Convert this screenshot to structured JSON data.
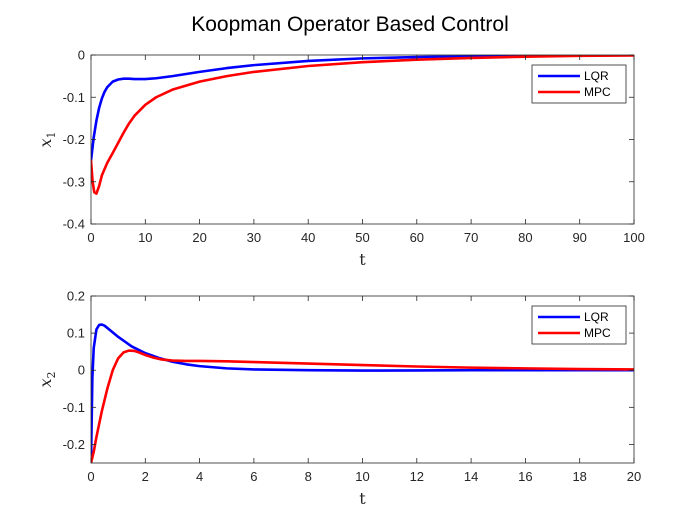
{
  "title": "Koopman Operator Based Control",
  "colors": {
    "LQR": "#0000ff",
    "MPC": "#ff0000"
  },
  "chart_data": [
    {
      "type": "line",
      "xlabel": "t",
      "ylabel": "x",
      "ylabel_sub": "1",
      "xlim": [
        0,
        100
      ],
      "ylim": [
        -0.4,
        0
      ],
      "xticks": [
        0,
        10,
        20,
        30,
        40,
        50,
        60,
        70,
        80,
        90,
        100
      ],
      "yticks": [
        -0.4,
        -0.3,
        -0.2,
        -0.1,
        0
      ],
      "ytick_labels": [
        "-0.4",
        "-0.3",
        "-0.2",
        "-0.1",
        "0"
      ],
      "grid": false,
      "legend": "top-right",
      "series": [
        {
          "name": "LQR",
          "x": [
            0,
            0.5,
            1,
            1.5,
            2,
            2.5,
            3,
            4,
            5,
            6,
            7,
            8,
            10,
            12,
            15,
            20,
            25,
            30,
            40,
            50,
            60,
            70,
            80,
            90,
            100
          ],
          "y": [
            -0.25,
            -0.195,
            -0.155,
            -0.125,
            -0.103,
            -0.087,
            -0.076,
            -0.063,
            -0.058,
            -0.056,
            -0.056,
            -0.057,
            -0.057,
            -0.055,
            -0.05,
            -0.04,
            -0.031,
            -0.024,
            -0.014,
            -0.008,
            -0.005,
            -0.003,
            -0.002,
            -0.001,
            -0.0005
          ]
        },
        {
          "name": "MPC",
          "x": [
            0,
            0.3,
            0.6,
            1,
            1.5,
            2,
            3,
            4,
            5,
            6,
            7,
            8,
            10,
            12,
            15,
            20,
            25,
            30,
            40,
            50,
            60,
            70,
            80,
            90,
            100
          ],
          "y": [
            -0.25,
            -0.3,
            -0.325,
            -0.328,
            -0.31,
            -0.285,
            -0.255,
            -0.232,
            -0.208,
            -0.184,
            -0.162,
            -0.144,
            -0.118,
            -0.1,
            -0.082,
            -0.063,
            -0.05,
            -0.04,
            -0.026,
            -0.017,
            -0.011,
            -0.007,
            -0.004,
            -0.002,
            -0.001
          ]
        }
      ]
    },
    {
      "type": "line",
      "xlabel": "t",
      "ylabel": "x",
      "ylabel_sub": "2",
      "xlim": [
        0,
        20
      ],
      "ylim": [
        -0.25,
        0.2
      ],
      "xticks": [
        0,
        2,
        4,
        6,
        8,
        10,
        12,
        14,
        16,
        18,
        20
      ],
      "yticks": [
        -0.2,
        -0.1,
        0,
        0.1,
        0.2
      ],
      "ytick_labels": [
        "-0.2",
        "-0.1",
        "0",
        "0.1",
        "0.2"
      ],
      "grid": false,
      "legend": "top-right",
      "series": [
        {
          "name": "LQR",
          "x": [
            0,
            0.05,
            0.1,
            0.2,
            0.3,
            0.4,
            0.5,
            0.7,
            1,
            1.5,
            2,
            2.5,
            3,
            3.5,
            4,
            5,
            6,
            8,
            10,
            12,
            14,
            16,
            18,
            20
          ],
          "y": [
            -0.25,
            -0.02,
            0.06,
            0.11,
            0.122,
            0.123,
            0.12,
            0.108,
            0.09,
            0.064,
            0.046,
            0.033,
            0.023,
            0.016,
            0.011,
            0.005,
            0.002,
            0.0,
            -0.001,
            -0.0005,
            0.0,
            0.0,
            0.0,
            0.0
          ]
        },
        {
          "name": "MPC",
          "x": [
            0,
            0.1,
            0.2,
            0.4,
            0.6,
            0.8,
            1.0,
            1.2,
            1.4,
            1.6,
            1.8,
            2.0,
            2.3,
            2.6,
            3,
            3.5,
            4,
            5,
            6,
            8,
            10,
            12,
            14,
            16,
            18,
            20
          ],
          "y": [
            -0.25,
            -0.22,
            -0.18,
            -0.11,
            -0.05,
            0.0,
            0.032,
            0.048,
            0.053,
            0.052,
            0.047,
            0.041,
            0.034,
            0.029,
            0.026,
            0.025,
            0.025,
            0.024,
            0.022,
            0.018,
            0.014,
            0.01,
            0.007,
            0.005,
            0.003,
            0.002
          ]
        }
      ]
    }
  ]
}
